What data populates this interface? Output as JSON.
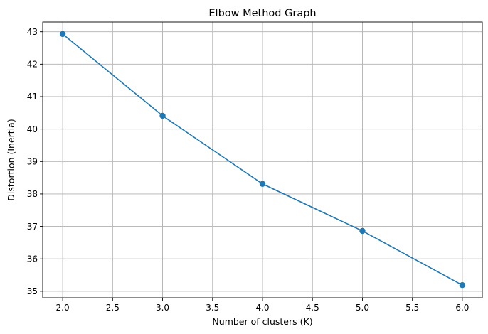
{
  "chart_data": {
    "type": "line",
    "title": "Elbow Method Graph",
    "xlabel": "Number of clusters (K)",
    "ylabel": "Distortion (Inertia)",
    "x": [
      2,
      3,
      4,
      5,
      6
    ],
    "series": [
      {
        "values": [
          42.93,
          40.41,
          38.31,
          36.86,
          35.19
        ],
        "color": "#1f77b4",
        "marker": "circle"
      }
    ],
    "xlim": [
      1.8,
      6.2
    ],
    "ylim": [
      34.8,
      43.3
    ],
    "xticks": [
      2.0,
      2.5,
      3.0,
      3.5,
      4.0,
      4.5,
      5.0,
      5.5,
      6.0
    ],
    "xtick_labels": [
      "2.0",
      "2.5",
      "3.0",
      "3.5",
      "4.0",
      "4.5",
      "5.0",
      "5.5",
      "6.0"
    ],
    "yticks": [
      35,
      36,
      37,
      38,
      39,
      40,
      41,
      42,
      43
    ],
    "ytick_labels": [
      "35",
      "36",
      "37",
      "38",
      "39",
      "40",
      "41",
      "42",
      "43"
    ],
    "grid": true,
    "legend": false
  }
}
